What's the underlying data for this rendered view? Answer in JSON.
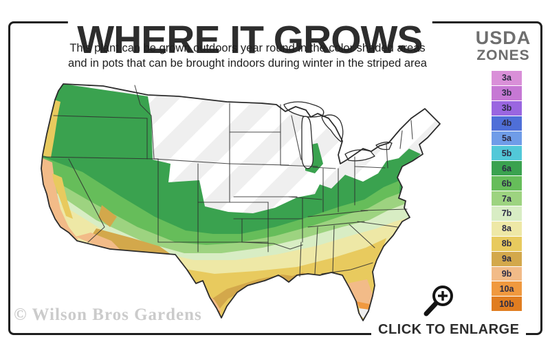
{
  "header": {
    "title": "WHERE IT GROWS",
    "subtitle_line1": "This plant can be grown outdoors year round in the color shaded areas",
    "subtitle_line2": "and in pots that can be brought indoors during winter in the striped area"
  },
  "legend": {
    "title_line1": "USDA",
    "title_line2": "ZONES",
    "zones": [
      {
        "label": "3a",
        "color": "#d98fd8"
      },
      {
        "label": "3b",
        "color": "#c678d4"
      },
      {
        "label": "3b",
        "color": "#9a66e0"
      },
      {
        "label": "4b",
        "color": "#4f6fd8"
      },
      {
        "label": "5a",
        "color": "#6f9ce8"
      },
      {
        "label": "5b",
        "color": "#52c8d8"
      },
      {
        "label": "6a",
        "color": "#3aa24f"
      },
      {
        "label": "6b",
        "color": "#66bd5a"
      },
      {
        "label": "7a",
        "color": "#9dd380"
      },
      {
        "label": "7b",
        "color": "#d8edc4"
      },
      {
        "label": "8a",
        "color": "#eee8a6"
      },
      {
        "label": "8b",
        "color": "#e8ca5e"
      },
      {
        "label": "9a",
        "color": "#d3a84b"
      },
      {
        "label": "9b",
        "color": "#f2bb88"
      },
      {
        "label": "10a",
        "color": "#f0993f"
      },
      {
        "label": "10b",
        "color": "#e07d20"
      }
    ]
  },
  "map": {
    "stripe_color_light": "#ffffff",
    "stripe_color_dark": "#efefef",
    "outline_color": "#2b2b2b"
  },
  "watermark": {
    "text": "© Wilson Bros Gardens"
  },
  "enlarge": {
    "label": "CLICK TO ENLARGE"
  }
}
